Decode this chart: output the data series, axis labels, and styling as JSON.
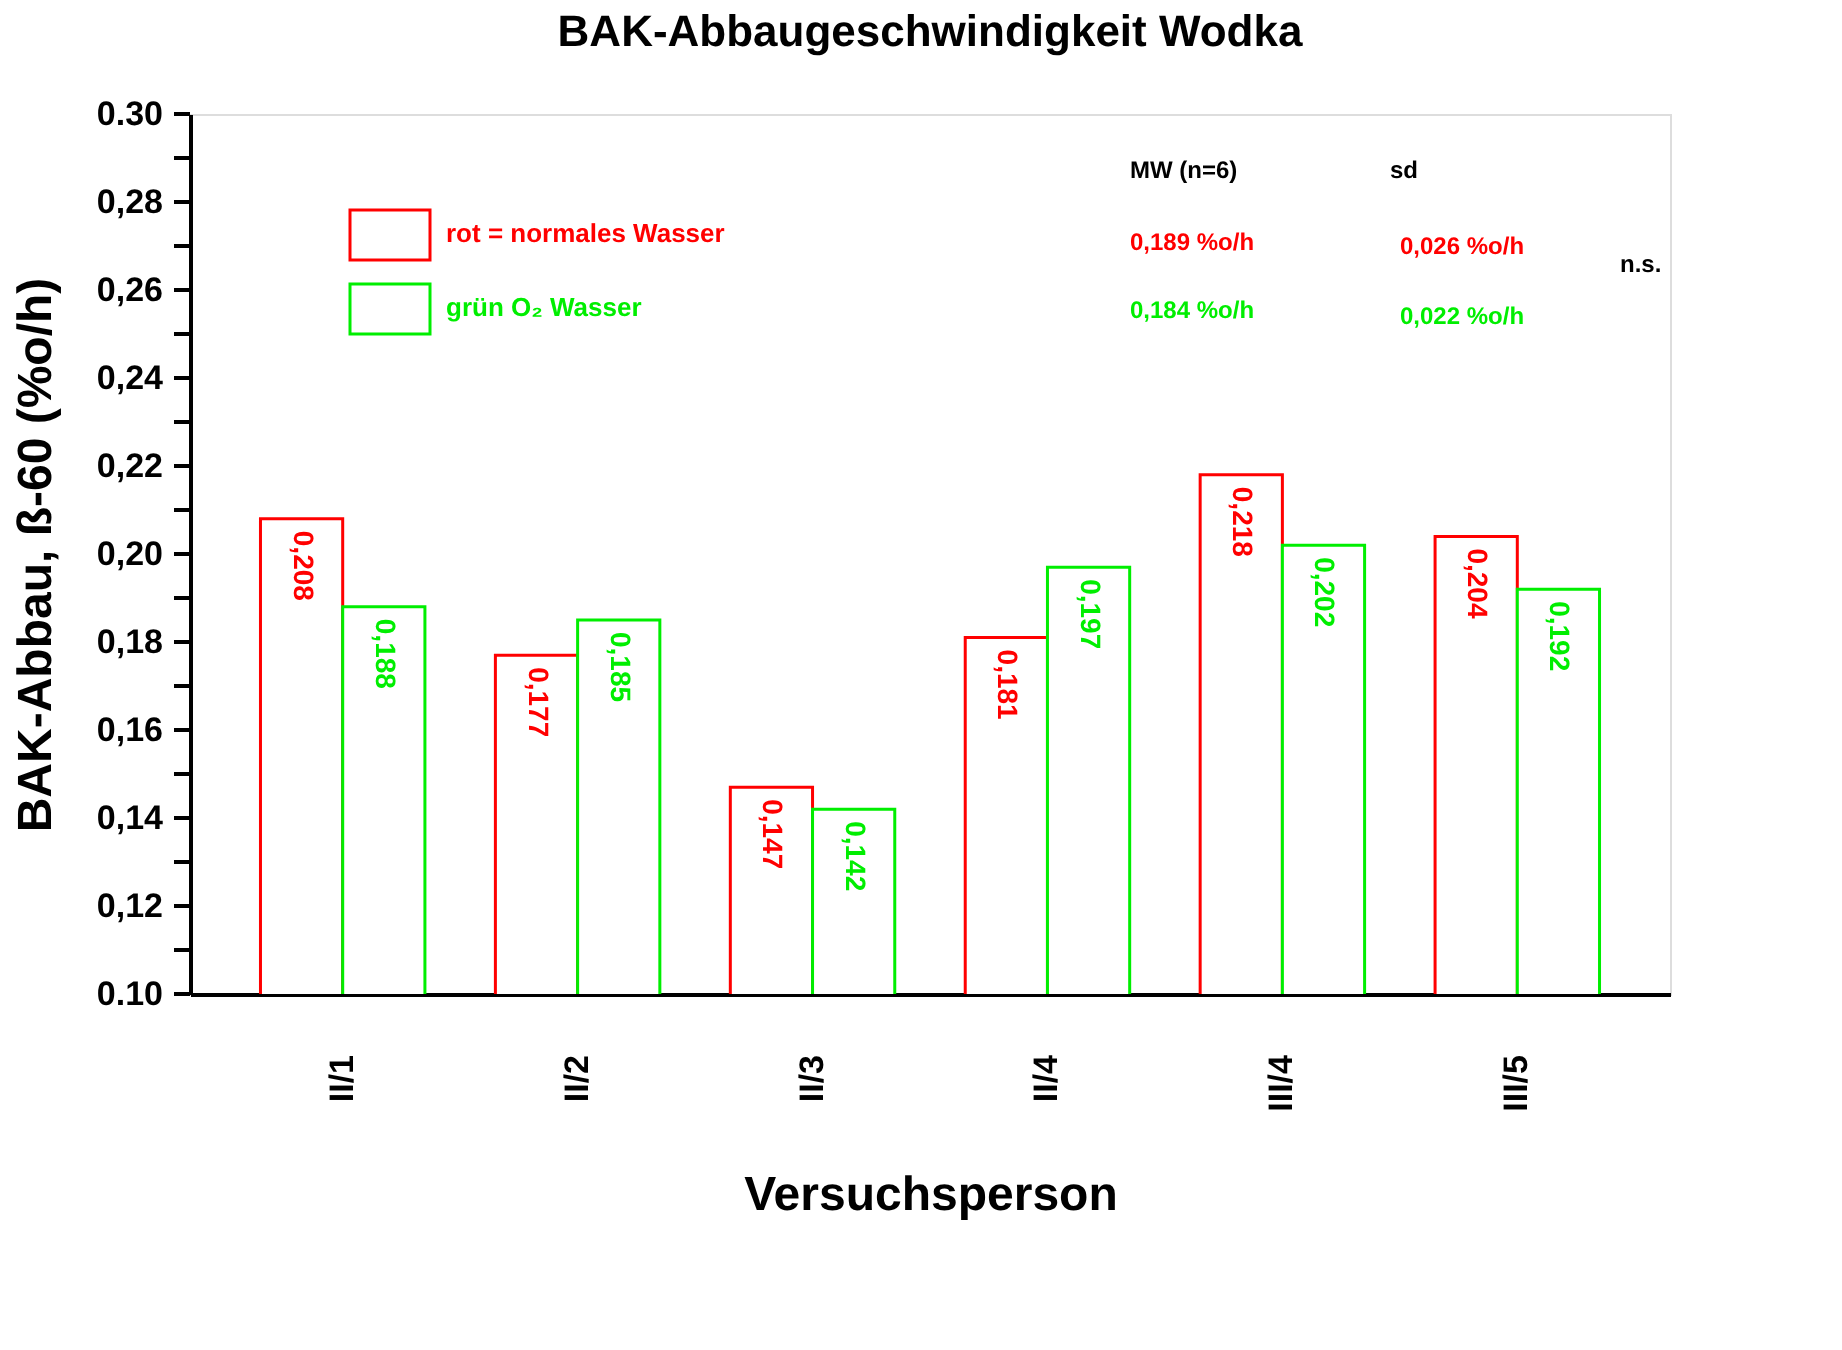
{
  "chart_data": {
    "type": "bar",
    "title": "BAK-Abbaugeschwindigkeit Wodka",
    "xlabel": "Versuchsperson",
    "ylabel": "BAK-Abbau, ß-60 (%o/h)",
    "categories": [
      "II/1",
      "II/2",
      "II/3",
      "II/4",
      "III/4",
      "III/5"
    ],
    "series": [
      {
        "name": "rot = normales Wasser",
        "color": "#ff0000",
        "values": [
          0.208,
          0.177,
          0.147,
          0.181,
          0.218,
          0.204
        ],
        "value_labels": [
          "0,208",
          "0,177",
          "0,147",
          "0,181",
          "0,218",
          "0,204"
        ]
      },
      {
        "name": "grün O₂ Wasser",
        "color": "#00ee00",
        "values": [
          0.188,
          0.185,
          0.142,
          0.197,
          0.202,
          0.192
        ],
        "value_labels": [
          "0,188",
          "0,185",
          "0,142",
          "0,197",
          "0,202",
          "0,192"
        ]
      }
    ],
    "ylim": [
      0.1,
      0.3
    ],
    "yticks": [
      {
        "value": 0.1,
        "label": "0.10"
      },
      {
        "value": 0.11,
        "label": null
      },
      {
        "value": 0.12,
        "label": "0,12"
      },
      {
        "value": 0.13,
        "label": null
      },
      {
        "value": 0.14,
        "label": "0,14"
      },
      {
        "value": 0.15,
        "label": null
      },
      {
        "value": 0.16,
        "label": "0,16"
      },
      {
        "value": 0.17,
        "label": null
      },
      {
        "value": 0.18,
        "label": "0,18"
      },
      {
        "value": 0.19,
        "label": null
      },
      {
        "value": 0.2,
        "label": "0,20"
      },
      {
        "value": 0.21,
        "label": null
      },
      {
        "value": 0.22,
        "label": "0,22"
      },
      {
        "value": 0.23,
        "label": null
      },
      {
        "value": 0.24,
        "label": "0,24"
      },
      {
        "value": 0.25,
        "label": null
      },
      {
        "value": 0.26,
        "label": "0,26"
      },
      {
        "value": 0.27,
        "label": null
      },
      {
        "value": 0.28,
        "label": "0,28"
      },
      {
        "value": 0.29,
        "label": null
      },
      {
        "value": 0.3,
        "label": "0.30"
      }
    ],
    "annotations": [
      "MW (n=6)",
      "sd",
      "0,189 %o/h",
      "0,026 %o/h",
      "0,184 %o/h",
      "0,022 %o/h",
      "n.s."
    ],
    "legend": "top left",
    "grid": false
  }
}
